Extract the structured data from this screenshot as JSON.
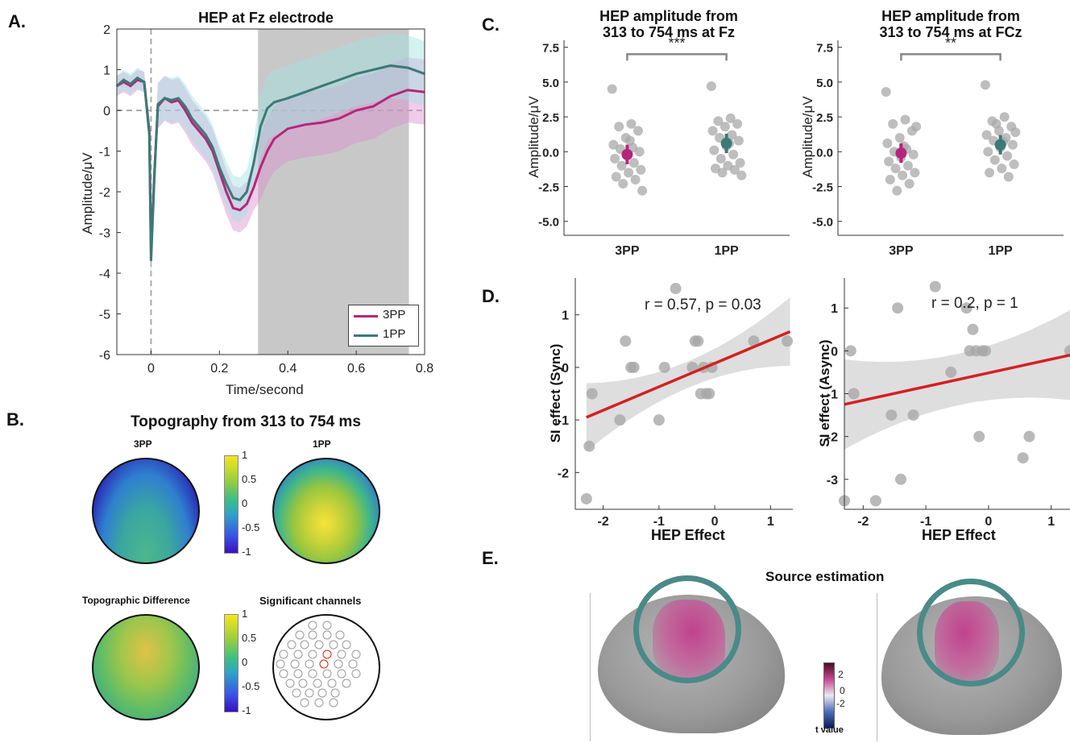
{
  "panels": {
    "A": "A.",
    "B": "B.",
    "C": "C.",
    "D": "D.",
    "E": "E."
  },
  "panelA": {
    "title": "HEP at Fz electrode",
    "xlabel": "Time/second",
    "ylabel": "Amplitude/μV",
    "legend": [
      "3PP",
      "1PP"
    ]
  },
  "panelB": {
    "title": "Topography from 313 to 754 ms",
    "maps": [
      "3PP",
      "1PP",
      "Topographic Difference",
      "Significant channels"
    ],
    "colorbar_ticks": [
      "1",
      "0.5",
      "0",
      "-0.5",
      "-1"
    ]
  },
  "panelC": {
    "titles": [
      [
        "HEP amplitude from",
        "313 to 754 ms at Fz"
      ],
      [
        "HEP amplitude from",
        "313 to 754 ms at FCz"
      ]
    ],
    "ylabel": "Amplitude/μV",
    "sig": [
      "***",
      "**"
    ]
  },
  "panelD": {
    "xlabel": "HEP Effect",
    "ylabels": [
      "SI effect  (Sync)",
      "SI effect (Async)"
    ],
    "stats": [
      "r = 0.57, p = 0.03",
      "r = 0.2, p = 1"
    ]
  },
  "panelE": {
    "title": "Source estimation",
    "colorbar_label": "t value",
    "colorbar_ticks": [
      "2",
      "0",
      "-2"
    ]
  },
  "colors": {
    "pp3": "#b5267a",
    "pp1": "#3b7a76",
    "shade": "#c8c8c8",
    "regression": "#d42020",
    "points": "#a8a8a8"
  },
  "chart_data": [
    {
      "type": "line",
      "title": "HEP at Fz electrode",
      "xlabel": "Time/second",
      "ylabel": "Amplitude/μV",
      "xlim": [
        -0.1,
        0.8
      ],
      "ylim": [
        -6,
        2
      ],
      "xticks": [
        0,
        0.2,
        0.4,
        0.6,
        0.8
      ],
      "yticks": [
        -6,
        -5,
        -4,
        -3,
        -2,
        -1,
        0,
        1,
        2
      ],
      "shaded_window": [
        0.313,
        0.754
      ],
      "x": [
        -0.1,
        -0.08,
        -0.06,
        -0.04,
        -0.02,
        -0.005,
        0.0,
        0.01,
        0.02,
        0.04,
        0.06,
        0.08,
        0.1,
        0.12,
        0.14,
        0.16,
        0.18,
        0.2,
        0.22,
        0.24,
        0.26,
        0.28,
        0.3,
        0.32,
        0.34,
        0.36,
        0.4,
        0.45,
        0.5,
        0.55,
        0.6,
        0.65,
        0.7,
        0.75,
        0.8
      ],
      "series": [
        {
          "name": "3PP",
          "values": [
            0.6,
            0.7,
            0.6,
            0.75,
            0.7,
            -0.5,
            -3.5,
            -1.5,
            0.1,
            0.3,
            0.2,
            0.25,
            0.0,
            -0.3,
            -0.5,
            -0.7,
            -1.0,
            -1.5,
            -2.0,
            -2.4,
            -2.45,
            -2.3,
            -1.9,
            -1.4,
            -1.0,
            -0.7,
            -0.45,
            -0.35,
            -0.3,
            -0.2,
            0.0,
            0.1,
            0.35,
            0.5,
            0.45
          ]
        },
        {
          "name": "1PP",
          "values": [
            0.6,
            0.75,
            0.65,
            0.8,
            0.7,
            -0.6,
            -3.7,
            -1.6,
            0.15,
            0.3,
            0.25,
            0.3,
            0.1,
            -0.2,
            -0.4,
            -0.6,
            -0.9,
            -1.4,
            -1.8,
            -2.15,
            -2.2,
            -2.0,
            -1.3,
            -0.4,
            0.05,
            0.2,
            0.3,
            0.45,
            0.6,
            0.75,
            0.9,
            1.0,
            1.1,
            1.05,
            0.9
          ]
        }
      ]
    },
    {
      "type": "scatter",
      "title": "HEP amplitude from 313 to 754 ms at Fz",
      "ylabel": "Amplitude/μV",
      "categories": [
        "3PP",
        "1PP"
      ],
      "ylim": [
        -6,
        8
      ],
      "yticks": [
        -5.0,
        -2.5,
        0.0,
        2.5,
        5.0,
        7.5
      ],
      "means": [
        -0.2,
        0.6
      ],
      "ci": [
        [
          -0.9,
          0.5
        ],
        [
          -0.1,
          1.3
        ]
      ],
      "points": [
        [
          4.5,
          2.0,
          1.8,
          1.5,
          1.0,
          0.5,
          0.3,
          0.2,
          0.0,
          -0.2,
          -0.5,
          -0.8,
          -1.0,
          -1.3,
          -1.5,
          -1.8,
          -2.0,
          -2.3,
          -2.8,
          0.8
        ],
        [
          4.7,
          2.4,
          2.2,
          2.0,
          1.8,
          1.5,
          1.2,
          1.0,
          0.8,
          0.4,
          0.1,
          -0.2,
          -0.5,
          -0.8,
          -1.0,
          -1.2,
          -1.3,
          -1.5,
          -1.7,
          0.6
        ]
      ]
    },
    {
      "type": "scatter",
      "title": "HEP amplitude from 313 to 754 ms at FCz",
      "ylabel": "Amplitude/μV",
      "categories": [
        "3PP",
        "1PP"
      ],
      "ylim": [
        -6,
        8
      ],
      "yticks": [
        -5.0,
        -2.5,
        0.0,
        2.5,
        5.0,
        7.5
      ],
      "means": [
        -0.1,
        0.5
      ],
      "ci": [
        [
          -0.8,
          0.6
        ],
        [
          -0.2,
          1.2
        ]
      ],
      "points": [
        [
          4.3,
          2.3,
          2.0,
          1.5,
          1.0,
          0.6,
          0.2,
          0.0,
          -0.2,
          -0.4,
          -0.7,
          -1.0,
          -1.2,
          -1.5,
          -1.7,
          -2.0,
          -2.3,
          -2.8,
          1.8,
          0.4
        ],
        [
          4.8,
          2.5,
          2.2,
          1.8,
          1.5,
          1.2,
          1.0,
          0.8,
          0.5,
          0.3,
          0.0,
          -0.3,
          -0.6,
          -0.9,
          -1.2,
          -1.5,
          -1.8,
          2.0,
          1.4,
          0.7
        ]
      ]
    },
    {
      "type": "scatter",
      "xlabel": "HEP Effect",
      "ylabel": "SI effect  (Sync)",
      "annotation": "r = 0.57, p = 0.03",
      "xlim": [
        -2.5,
        1.4
      ],
      "ylim": [
        -2.7,
        1.7
      ],
      "xticks": [
        -2,
        -1,
        0,
        1
      ],
      "yticks": [
        -2,
        -1,
        0,
        1
      ],
      "x": [
        -2.3,
        -2.25,
        -2.2,
        -1.7,
        -1.6,
        -1.5,
        -1.45,
        -1.0,
        -0.9,
        -0.7,
        -0.4,
        -0.35,
        -0.3,
        -0.25,
        -0.2,
        -0.15,
        -0.1,
        -0.05,
        0.7,
        1.3
      ],
      "y": [
        -2.5,
        -1.5,
        -0.5,
        -1.0,
        0.5,
        0.0,
        0.0,
        -1.0,
        0.0,
        1.5,
        0.0,
        0.5,
        0.5,
        -0.5,
        0.0,
        -0.5,
        -0.5,
        0.0,
        0.5,
        0.5
      ],
      "fit": {
        "x": [
          -2.3,
          1.35
        ],
        "y": [
          -0.95,
          0.68
        ]
      }
    },
    {
      "type": "scatter",
      "xlabel": "HEP Effect",
      "ylabel": "SI effect (Async)",
      "annotation": "r = 0.2, p = 1",
      "xlim": [
        -2.3,
        1.3
      ],
      "ylim": [
        -3.7,
        1.7
      ],
      "xticks": [
        -2,
        -1,
        0,
        1
      ],
      "yticks": [
        -3,
        -2,
        -1,
        0,
        1
      ],
      "x": [
        -2.3,
        -2.2,
        -2.15,
        -1.8,
        -1.55,
        -1.45,
        -1.4,
        -1.2,
        -0.85,
        -0.6,
        -0.35,
        -0.3,
        -0.25,
        -0.2,
        -0.15,
        -0.1,
        -0.05,
        0.55,
        0.65,
        1.3
      ],
      "y": [
        -3.5,
        0.0,
        -1.0,
        -3.5,
        -1.5,
        1.0,
        -3.0,
        -1.5,
        1.5,
        -0.5,
        1.0,
        0.0,
        0.5,
        0.0,
        -2.0,
        0.0,
        0.0,
        -2.5,
        -2.0,
        0.0
      ],
      "fit": {
        "x": [
          -2.3,
          1.3
        ],
        "y": [
          -1.25,
          -0.1
        ]
      }
    }
  ]
}
